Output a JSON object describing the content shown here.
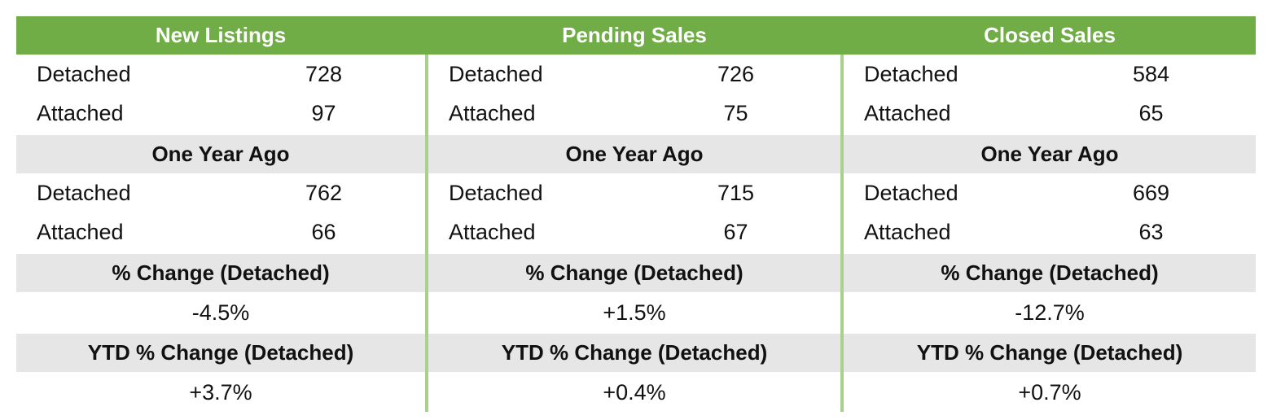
{
  "columns": [
    {
      "title": "New Listings",
      "current": [
        {
          "label": "Detached",
          "value": "728"
        },
        {
          "label": "Attached",
          "value": "97"
        }
      ],
      "year_ago_title": "One Year Ago",
      "year_ago": [
        {
          "label": "Detached",
          "value": "762"
        },
        {
          "label": "Attached",
          "value": "66"
        }
      ],
      "change_title": "% Change (Detached)",
      "change": "-4.5%",
      "ytd_title": "YTD % Change (Detached)",
      "ytd": "+3.7%"
    },
    {
      "title": "Pending Sales",
      "current": [
        {
          "label": "Detached",
          "value": "726"
        },
        {
          "label": "Attached",
          "value": "75"
        }
      ],
      "year_ago_title": "One Year Ago",
      "year_ago": [
        {
          "label": "Detached",
          "value": "715"
        },
        {
          "label": "Attached",
          "value": "67"
        }
      ],
      "change_title": "% Change (Detached)",
      "change": "+1.5%",
      "ytd_title": "YTD % Change (Detached)",
      "ytd": "+0.4%"
    },
    {
      "title": "Closed Sales",
      "current": [
        {
          "label": "Detached",
          "value": "584"
        },
        {
          "label": "Attached",
          "value": "65"
        }
      ],
      "year_ago_title": "One Year Ago",
      "year_ago": [
        {
          "label": "Detached",
          "value": "669"
        },
        {
          "label": "Attached",
          "value": "63"
        }
      ],
      "change_title": "% Change (Detached)",
      "change": "-12.7%",
      "ytd_title": "YTD % Change (Detached)",
      "ytd": "+0.7%"
    }
  ]
}
